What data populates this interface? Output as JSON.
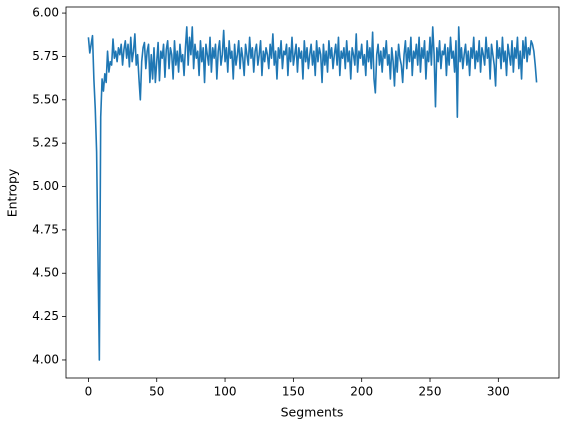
{
  "chart_data": {
    "type": "line",
    "xlabel": "Segments",
    "ylabel": "Entropy",
    "color": "#1f77b4",
    "x": [
      0,
      1,
      2,
      3,
      4,
      5,
      6,
      7,
      8,
      9,
      10,
      11,
      12,
      13,
      14,
      15,
      16,
      17,
      18,
      19,
      20,
      21,
      22,
      23,
      24,
      25,
      26,
      27,
      28,
      29,
      30,
      31,
      32,
      33,
      34,
      35,
      36,
      37,
      38,
      39,
      40,
      41,
      42,
      43,
      44,
      45,
      46,
      47,
      48,
      49,
      50,
      51,
      52,
      53,
      54,
      55,
      56,
      57,
      58,
      59,
      60,
      61,
      62,
      63,
      64,
      65,
      66,
      67,
      68,
      69,
      70,
      71,
      72,
      73,
      74,
      75,
      76,
      77,
      78,
      79,
      80,
      81,
      82,
      83,
      84,
      85,
      86,
      87,
      88,
      89,
      90,
      91,
      92,
      93,
      94,
      95,
      96,
      97,
      98,
      99,
      100,
      101,
      102,
      103,
      104,
      105,
      106,
      107,
      108,
      109,
      110,
      111,
      112,
      113,
      114,
      115,
      116,
      117,
      118,
      119,
      120,
      121,
      122,
      123,
      124,
      125,
      126,
      127,
      128,
      129,
      130,
      131,
      132,
      133,
      134,
      135,
      136,
      137,
      138,
      139,
      140,
      141,
      142,
      143,
      144,
      145,
      146,
      147,
      148,
      149,
      150,
      151,
      152,
      153,
      154,
      155,
      156,
      157,
      158,
      159,
      160,
      161,
      162,
      163,
      164,
      165,
      166,
      167,
      168,
      169,
      170,
      171,
      172,
      173,
      174,
      175,
      176,
      177,
      178,
      179,
      180,
      181,
      182,
      183,
      184,
      185,
      186,
      187,
      188,
      189,
      190,
      191,
      192,
      193,
      194,
      195,
      196,
      197,
      198,
      199,
      200,
      201,
      202,
      203,
      204,
      205,
      206,
      207,
      208,
      209,
      210,
      211,
      212,
      213,
      214,
      215,
      216,
      217,
      218,
      219,
      220,
      221,
      222,
      223,
      224,
      225,
      226,
      227,
      228,
      229,
      230,
      231,
      232,
      233,
      234,
      235,
      236,
      237,
      238,
      239,
      240,
      241,
      242,
      243,
      244,
      245,
      246,
      247,
      248,
      249,
      250,
      251,
      252,
      253,
      254,
      255,
      256,
      257,
      258,
      259,
      260,
      261,
      262,
      263,
      264,
      265,
      266,
      267,
      268,
      269,
      270,
      271,
      272,
      273,
      274,
      275,
      276,
      277,
      278,
      279,
      280,
      281,
      282,
      283,
      284,
      285,
      286,
      287,
      288,
      289,
      290,
      291,
      292,
      293,
      294,
      295,
      296,
      297,
      298,
      299,
      300,
      301,
      302,
      303,
      304,
      305,
      306,
      307,
      308,
      309,
      310,
      311,
      312,
      313,
      314,
      315,
      316,
      317,
      318,
      319,
      320,
      321,
      322,
      323,
      324,
      325,
      326,
      327,
      328
    ],
    "values": [
      5.86,
      5.77,
      5.82,
      5.87,
      5.62,
      5.45,
      5.2,
      4.6,
      4.0,
      5.4,
      5.62,
      5.55,
      5.65,
      5.6,
      5.78,
      5.66,
      5.72,
      5.7,
      5.85,
      5.74,
      5.78,
      5.72,
      5.8,
      5.76,
      5.82,
      5.7,
      5.79,
      5.84,
      5.74,
      5.82,
      5.69,
      5.86,
      5.72,
      5.78,
      5.88,
      5.7,
      5.76,
      5.62,
      5.5,
      5.72,
      5.8,
      5.83,
      5.68,
      5.78,
      5.82,
      5.6,
      5.76,
      5.62,
      5.8,
      5.6,
      5.72,
      5.83,
      5.61,
      5.78,
      5.74,
      5.82,
      5.63,
      5.79,
      5.84,
      5.68,
      5.8,
      5.76,
      5.62,
      5.84,
      5.7,
      5.78,
      5.66,
      5.82,
      5.72,
      5.76,
      5.64,
      5.8,
      5.92,
      5.7,
      5.86,
      5.76,
      5.92,
      5.68,
      5.82,
      5.74,
      5.78,
      5.64,
      5.84,
      5.72,
      5.8,
      5.6,
      5.82,
      5.76,
      5.7,
      5.86,
      5.66,
      5.8,
      5.74,
      5.82,
      5.62,
      5.78,
      5.84,
      5.7,
      5.76,
      5.9,
      5.72,
      5.8,
      5.66,
      5.84,
      5.74,
      5.78,
      5.62,
      5.82,
      5.7,
      5.76,
      5.84,
      5.68,
      5.8,
      5.74,
      5.64,
      5.82,
      5.76,
      5.7,
      5.86,
      5.74,
      5.8,
      5.66,
      5.78,
      5.82,
      5.7,
      5.76,
      5.84,
      5.64,
      5.78,
      5.72,
      5.8,
      5.76,
      5.68,
      5.82,
      5.74,
      5.88,
      5.7,
      5.78,
      5.62,
      5.8,
      5.74,
      5.84,
      5.68,
      5.78,
      5.76,
      5.82,
      5.64,
      5.8,
      5.72,
      5.86,
      5.7,
      5.76,
      5.82,
      5.66,
      5.8,
      5.74,
      5.78,
      5.62,
      5.84,
      5.72,
      5.8,
      5.68,
      5.76,
      5.82,
      5.7,
      5.78,
      5.64,
      5.84,
      5.72,
      5.8,
      5.76,
      5.6,
      5.82,
      5.7,
      5.78,
      5.66,
      5.84,
      5.74,
      5.8,
      5.68,
      5.76,
      5.82,
      5.7,
      5.86,
      5.64,
      5.78,
      5.74,
      5.8,
      5.68,
      5.84,
      5.72,
      5.78,
      5.62,
      5.8,
      5.76,
      5.7,
      5.88,
      5.66,
      5.78,
      5.74,
      5.82,
      5.7,
      5.76,
      5.64,
      5.84,
      5.72,
      5.8,
      5.68,
      5.89,
      5.62,
      5.54,
      5.76,
      5.82,
      5.7,
      5.78,
      5.66,
      5.8,
      5.74,
      5.84,
      5.7,
      5.76,
      5.62,
      5.8,
      5.72,
      5.58,
      5.78,
      5.66,
      5.82,
      5.74,
      5.7,
      5.6,
      5.76,
      5.84,
      5.68,
      5.8,
      5.72,
      5.86,
      5.64,
      5.78,
      5.74,
      5.82,
      5.7,
      5.86,
      5.66,
      5.8,
      5.74,
      5.84,
      5.62,
      5.78,
      5.72,
      5.86,
      5.7,
      5.92,
      5.76,
      5.46,
      5.8,
      5.72,
      5.84,
      5.68,
      5.78,
      5.76,
      5.82,
      5.64,
      5.8,
      5.7,
      5.86,
      5.74,
      5.78,
      5.66,
      5.84,
      5.4,
      5.92,
      5.72,
      5.8,
      5.68,
      5.76,
      5.82,
      5.7,
      5.78,
      5.64,
      5.8,
      5.74,
      5.86,
      5.68,
      5.78,
      5.72,
      5.84,
      5.66,
      5.8,
      5.76,
      5.7,
      5.86,
      5.74,
      5.8,
      5.62,
      5.82,
      5.76,
      5.7,
      5.58,
      5.84,
      5.74,
      5.8,
      5.68,
      5.86,
      5.72,
      5.78,
      5.64,
      5.82,
      5.76,
      5.7,
      5.84,
      5.66,
      5.8,
      5.74,
      5.86,
      5.68,
      5.78,
      5.62,
      5.84,
      5.74,
      5.86,
      5.72,
      5.8,
      5.76,
      5.84,
      5.82,
      5.78,
      5.7,
      5.6
    ],
    "xlim": [
      -16.4,
      344.4
    ],
    "xticks": [
      0,
      50,
      100,
      150,
      200,
      250,
      300
    ],
    "ylim": [
      3.896,
      6.035
    ],
    "yticks": [
      {
        "value": 4,
        "label": "4.00"
      },
      4.25,
      {
        "value": 4.5,
        "label": "4.50"
      },
      4.75,
      {
        "value": 5,
        "label": "5.00"
      },
      5.25,
      {
        "value": 5.5,
        "label": "5.50"
      },
      5.75,
      {
        "value": 6,
        "label": "6.00"
      }
    ],
    "grid": false
  }
}
